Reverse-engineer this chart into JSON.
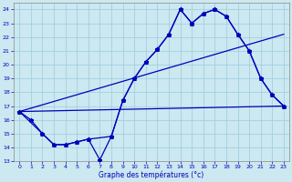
{
  "xlabel": "Graphe des températures (°c)",
  "xlim": [
    -0.5,
    23.5
  ],
  "ylim": [
    13,
    24.5
  ],
  "yticks": [
    13,
    14,
    15,
    16,
    17,
    18,
    19,
    20,
    21,
    22,
    23,
    24
  ],
  "xticks": [
    0,
    1,
    2,
    3,
    4,
    5,
    6,
    7,
    8,
    9,
    10,
    11,
    12,
    13,
    14,
    15,
    16,
    17,
    18,
    19,
    20,
    21,
    22,
    23
  ],
  "bg_color": "#cce8f0",
  "line_color": "#0000bb",
  "grid_color": "#99cce0",
  "line_jagged": {
    "x": [
      0,
      1,
      2,
      3,
      4,
      5,
      6,
      7,
      8,
      9,
      10,
      11,
      12,
      13,
      14,
      15,
      16,
      17,
      18,
      19,
      20,
      21,
      22,
      23
    ],
    "y": [
      16.6,
      16.0,
      15.0,
      14.2,
      14.2,
      14.4,
      14.6,
      13.1,
      14.8,
      17.4,
      19.0,
      20.2,
      21.1,
      22.2,
      24.0,
      23.0,
      23.7,
      24.0,
      23.5,
      22.2,
      21.0,
      19.0,
      17.8,
      17.0
    ]
  },
  "line_smooth": {
    "x": [
      0,
      2,
      3,
      4,
      5,
      6,
      8,
      9,
      10,
      11,
      12,
      13,
      14,
      15,
      16,
      17,
      18,
      19,
      20,
      21,
      22,
      23
    ],
    "y": [
      16.6,
      15.0,
      14.2,
      14.2,
      14.4,
      14.6,
      14.8,
      17.4,
      19.0,
      20.2,
      21.1,
      22.2,
      24.0,
      23.0,
      23.7,
      24.0,
      23.5,
      22.2,
      21.0,
      19.0,
      17.8,
      17.0
    ]
  },
  "line_max": {
    "x": [
      0,
      23
    ],
    "y": [
      16.6,
      22.2
    ]
  },
  "line_min": {
    "x": [
      0,
      23
    ],
    "y": [
      16.6,
      17.0
    ]
  }
}
